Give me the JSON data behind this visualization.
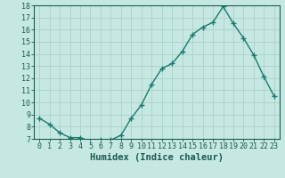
{
  "x": [
    0,
    1,
    2,
    3,
    4,
    5,
    6,
    7,
    8,
    9,
    10,
    11,
    12,
    13,
    14,
    15,
    16,
    17,
    18,
    19,
    20,
    21,
    22,
    23
  ],
  "y": [
    8.7,
    8.2,
    7.5,
    7.1,
    7.1,
    6.8,
    6.9,
    6.9,
    7.3,
    8.7,
    9.8,
    11.5,
    12.8,
    13.2,
    14.2,
    15.6,
    16.2,
    16.6,
    17.9,
    16.5,
    15.3,
    13.9,
    12.1,
    10.5
  ],
  "xlabel": "Humidex (Indice chaleur)",
  "line_color": "#1a7a6e",
  "marker": "+",
  "bg_color": "#c6e8e2",
  "grid_color": "#afd4cc",
  "text_color": "#1a5a50",
  "axis_color": "#1a5a50",
  "xlim_min": -0.5,
  "xlim_max": 23.5,
  "ylim_min": 7,
  "ylim_max": 18,
  "yticks": [
    7,
    8,
    9,
    10,
    11,
    12,
    13,
    14,
    15,
    16,
    17,
    18
  ],
  "xticks": [
    0,
    1,
    2,
    3,
    4,
    5,
    6,
    7,
    8,
    9,
    10,
    11,
    12,
    13,
    14,
    15,
    16,
    17,
    18,
    19,
    20,
    21,
    22,
    23
  ],
  "tick_fontsize": 6.0,
  "xlabel_fontsize": 7.5
}
